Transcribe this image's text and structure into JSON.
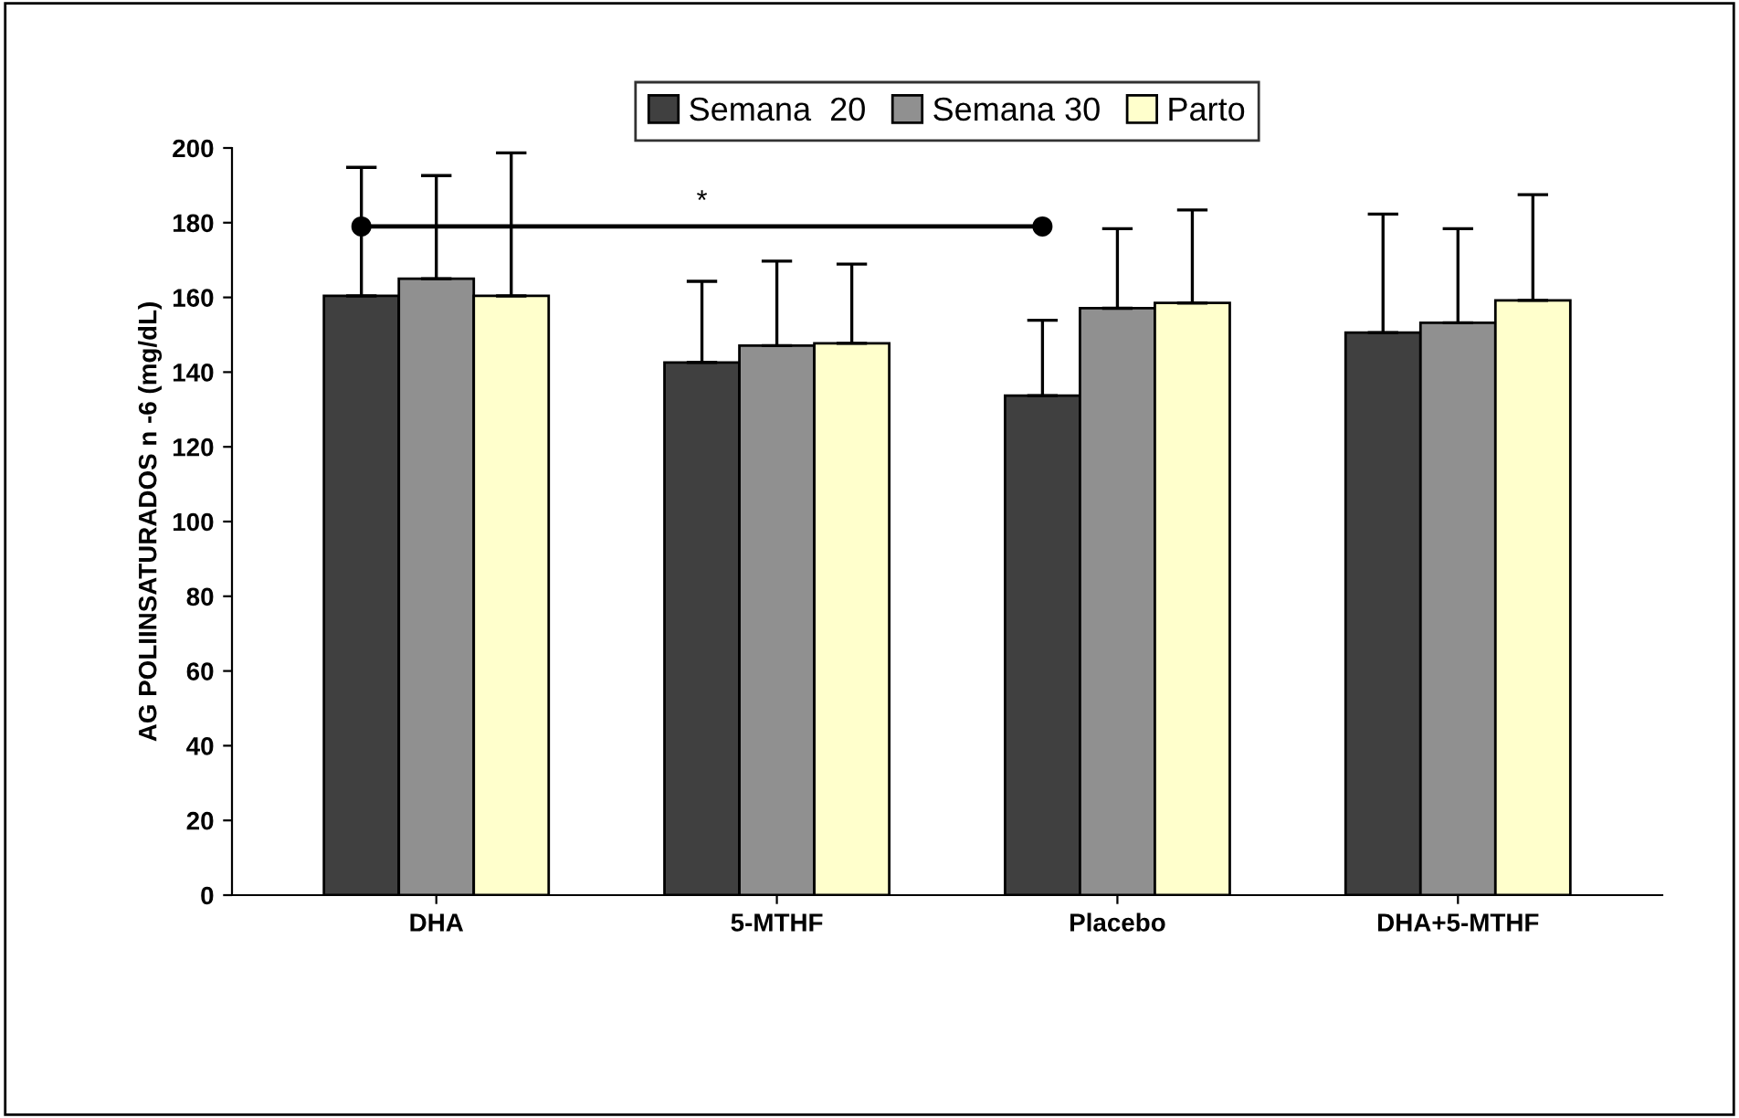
{
  "chart_data": {
    "type": "bar",
    "ylabel": "AG POLIINSATURADOS n -6 (mg/dL)",
    "categories": [
      "DHA",
      "5-MTHF",
      "Placebo",
      "DHA+5-MTHF"
    ],
    "series": [
      {
        "name": "Semana  20",
        "color": "#404040",
        "values": [
          160.4,
          142.6,
          133.7,
          150.6
        ],
        "errors": [
          34.4,
          21.7,
          20.2,
          31.7
        ]
      },
      {
        "name": "Semana 30",
        "color": "#909090",
        "values": [
          165,
          147.1,
          157.1,
          153.2
        ],
        "errors": [
          27.6,
          22.6,
          21.3,
          25.2
        ]
      },
      {
        "name": "Parto",
        "color": "#ffffcc",
        "values": [
          160.4,
          147.7,
          158.5,
          159.2
        ],
        "errors": [
          38.3,
          21.2,
          24.9,
          28.3
        ]
      }
    ],
    "ylim": [
      0,
      200
    ],
    "yticks": [
      0,
      20,
      40,
      60,
      80,
      100,
      120,
      140,
      160,
      180,
      200
    ],
    "grid": false,
    "legend": "top",
    "annotations": [
      "*"
    ]
  }
}
